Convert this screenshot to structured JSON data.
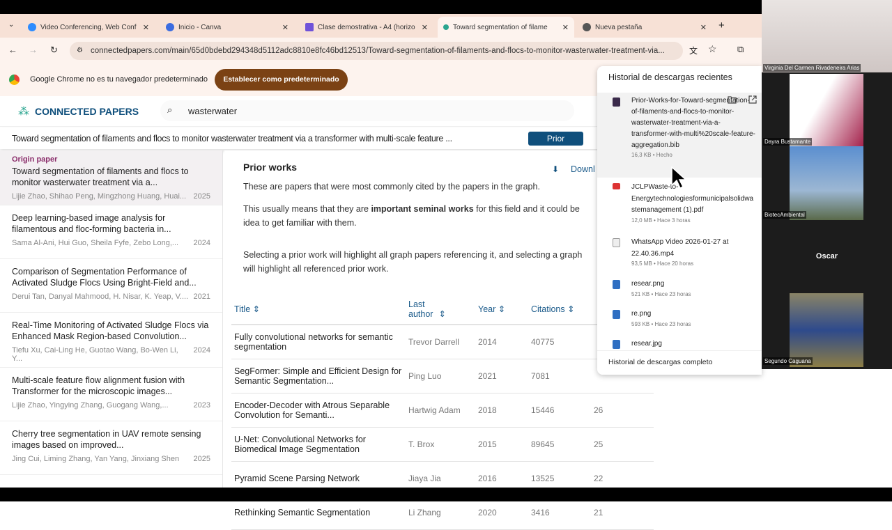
{
  "browser": {
    "tabs": [
      {
        "label": "Video Conferencing, Web Conf",
        "icon": "zoom-icon",
        "color": "#2d8cff"
      },
      {
        "label": "Inicio - Canva",
        "icon": "canva-icon",
        "color": "#3b6ce0"
      },
      {
        "label": "Clase demostrativa - A4 (horizo",
        "icon": "slides-icon",
        "color": "#6f52d9"
      },
      {
        "label": "Toward segmentation of filame",
        "icon": "connected-papers-icon",
        "color": "#2aa58f",
        "active": true
      },
      {
        "label": "Nueva pestaña",
        "icon": "chrome-icon",
        "color": "#555"
      }
    ],
    "url": "connectedpapers.com/main/65d0bdebd294348d5112adc8810e8fc46bd12513/Toward-segmentation-of-filaments-and-flocs-to-monitor-wasterwater-treatment-via...",
    "infobar_text": "Google Chrome no es tu navegador predeterminado",
    "infobar_button": "Establecer como predeterminado"
  },
  "app": {
    "logo": "CONNECTED PAPERS",
    "search_value": "wasterwater",
    "paper_title": "Toward segmentation of filaments and flocs to monitor wasterwater treatment via a transformer with multi-scale feature ...",
    "prior_button": "Prior"
  },
  "sidebar": {
    "origin_label": "Origin paper",
    "papers": [
      {
        "title": "Toward segmentation of filaments and flocs to monitor wasterwater treatment via a...",
        "authors": "Lijie Zhao, Shihao Peng, Mingzhong Huang, Huai...",
        "year": "2025"
      },
      {
        "title": "Deep learning-based image analysis for filamentous and floc-forming bacteria in...",
        "authors": "Sama Al-Ani, Hui Guo, Sheila Fyfe, Zebo Long,...",
        "year": "2024"
      },
      {
        "title": "Comparison of Segmentation Performance of Activated Sludge Flocs Using Bright-Field and...",
        "authors": "Derui Tan, Danyal Mahmood, H. Nisar, K. Yeap, V....",
        "year": "2021"
      },
      {
        "title": "Real-Time Monitoring of Activated Sludge Flocs via Enhanced Mask Region-based Convolution...",
        "authors": "Tiefu Xu, Cai-Ling He, Guotao Wang, Bo-Wen Li, Y...",
        "year": "2024"
      },
      {
        "title": "Multi-scale feature flow alignment fusion with Transformer for the microscopic images...",
        "authors": "Lijie Zhao, Yingying Zhang, Guogang Wang,...",
        "year": "2023"
      },
      {
        "title": "Cherry tree segmentation in UAV remote sensing images based on improved...",
        "authors": "Jing Cui, Liming Zhang, Yan Yang, Jinxiang Shen",
        "year": "2025"
      }
    ]
  },
  "main": {
    "heading": "Prior works",
    "download": "Downl",
    "p1": "These are papers that were most commonly cited by the papers in the graph.",
    "p2a": "This usually means that they are ",
    "p2b": "important seminal works",
    "p2c": " for this field and it could be idea to get familiar with them.",
    "p3": "Selecting a prior work will highlight all graph papers referencing it, and selecting a graph will highlight all referenced prior work.",
    "columns": [
      "Title",
      "Last author",
      "Year",
      "Citations"
    ],
    "rows": [
      {
        "title": "Fully convolutional networks for semantic segmentation",
        "author": "Trevor Darrell",
        "year": "2014",
        "citations": "40775",
        "graph": ""
      },
      {
        "title": "SegFormer: Simple and Efficient Design for Semantic Segmentation...",
        "author": "Ping Luo",
        "year": "2021",
        "citations": "7081",
        "graph": ""
      },
      {
        "title": "Encoder-Decoder with Atrous Separable Convolution for Semanti...",
        "author": "Hartwig Adam",
        "year": "2018",
        "citations": "15446",
        "graph": "26"
      },
      {
        "title": "U-Net: Convolutional Networks for Biomedical Image Segmentation",
        "author": "T. Brox",
        "year": "2015",
        "citations": "89645",
        "graph": "25"
      },
      {
        "title": "Pyramid Scene Parsing Network",
        "author": "Jiaya Jia",
        "year": "2016",
        "citations": "13525",
        "graph": "22"
      },
      {
        "title": "Rethinking Semantic Segmentation",
        "author": "Li Zhang",
        "year": "2020",
        "citations": "3416",
        "graph": "21"
      }
    ]
  },
  "downloads": {
    "title": "Historial de descargas recientes",
    "footer": "Historial de descargas completo",
    "items": [
      {
        "name": "Prior-Works-for-Toward-segmentation-of-filaments-and-flocs-to-monitor-wasterwater-treatment-via-a-transformer-with-multi%20scale-feature-aggregation.bib",
        "meta": "16,3 KB • Hecho",
        "icon": "bib-file-icon"
      },
      {
        "name": "JCLPWaste-to-Energytechnologiesformunicipalsolidwastemanagement (1).pdf",
        "meta": "12,0 MB • Hace 3 horas",
        "icon": "pdf-file-icon"
      },
      {
        "name": "WhatsApp Video 2026-01-27 at 22.40.36.mp4",
        "meta": "93,5 MB • Hace 20 horas",
        "icon": "video-file-icon"
      },
      {
        "name": "resear.png",
        "meta": "521 KB • Hace 23 horas",
        "icon": "image-file-icon"
      },
      {
        "name": "re.png",
        "meta": "593 KB • Hace 23 horas",
        "icon": "image-file-icon"
      },
      {
        "name": "resear.jpg",
        "meta": "",
        "icon": "image-file-icon"
      }
    ]
  },
  "meeting": {
    "participants": [
      "Virginia Del Carmen Rivadeneira Arias",
      "Dayra Bustamante",
      "BiotecAmbiental",
      "Oscar",
      "Segundo Caguana"
    ]
  }
}
